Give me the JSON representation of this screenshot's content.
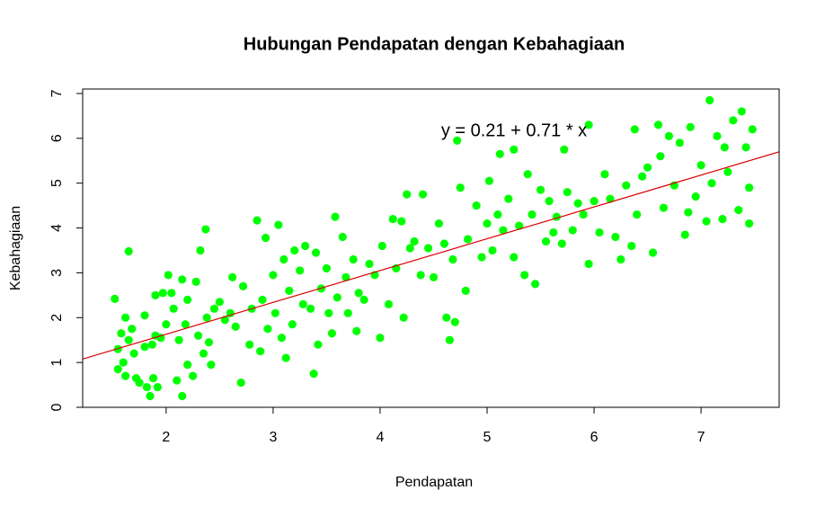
{
  "chart_data": {
    "type": "scatter",
    "title": "Hubungan Pendapatan dengan Kebahagiaan",
    "x_label": "Pendapatan",
    "y_label": "Kebahagiaan",
    "annotation": "y = 0.21 + 0.71 * x",
    "regression": {
      "intercept": 0.21,
      "slope": 0.71,
      "color": "#dd0000"
    },
    "color": "#00ff00",
    "xlim": [
      1.22,
      7.73
    ],
    "ylim": [
      0,
      7.1
    ],
    "xticks": [
      2,
      3,
      4,
      5,
      6,
      7
    ],
    "yticks": [
      0,
      1,
      2,
      3,
      4,
      5,
      6,
      7
    ],
    "x": [
      1.52,
      1.55,
      1.55,
      1.58,
      1.6,
      1.62,
      1.62,
      1.65,
      1.65,
      1.68,
      1.7,
      1.72,
      1.75,
      1.8,
      1.8,
      1.82,
      1.85,
      1.87,
      1.88,
      1.9,
      1.9,
      1.92,
      1.95,
      1.97,
      2.0,
      2.02,
      2.05,
      2.07,
      2.1,
      2.12,
      2.15,
      2.15,
      2.18,
      2.2,
      2.2,
      2.25,
      2.28,
      2.3,
      2.32,
      2.35,
      2.37,
      2.38,
      2.4,
      2.42,
      2.45,
      2.5,
      2.55,
      2.6,
      2.62,
      2.65,
      2.7,
      2.72,
      2.78,
      2.8,
      2.85,
      2.88,
      2.9,
      2.93,
      2.95,
      3.0,
      3.02,
      3.05,
      3.08,
      3.1,
      3.12,
      3.15,
      3.18,
      3.2,
      3.25,
      3.28,
      3.3,
      3.35,
      3.38,
      3.4,
      3.42,
      3.45,
      3.5,
      3.52,
      3.55,
      3.58,
      3.6,
      3.65,
      3.68,
      3.7,
      3.75,
      3.78,
      3.8,
      3.85,
      3.9,
      3.95,
      4.0,
      4.02,
      4.08,
      4.12,
      4.15,
      4.2,
      4.22,
      4.25,
      4.28,
      4.32,
      4.38,
      4.4,
      4.45,
      4.5,
      4.55,
      4.6,
      4.62,
      4.65,
      4.68,
      4.7,
      4.72,
      4.75,
      4.8,
      4.82,
      4.9,
      4.95,
      5.0,
      5.02,
      5.05,
      5.1,
      5.12,
      5.15,
      5.2,
      5.25,
      5.25,
      5.3,
      5.35,
      5.38,
      5.42,
      5.45,
      5.5,
      5.55,
      5.58,
      5.62,
      5.65,
      5.7,
      5.72,
      5.75,
      5.8,
      5.85,
      5.9,
      5.95,
      5.95,
      6.0,
      6.05,
      6.1,
      6.15,
      6.2,
      6.25,
      6.3,
      6.35,
      6.38,
      6.4,
      6.45,
      6.5,
      6.55,
      6.6,
      6.62,
      6.65,
      6.7,
      6.75,
      6.8,
      6.85,
      6.88,
      6.9,
      6.95,
      7.0,
      7.05,
      7.08,
      7.1,
      7.15,
      7.2,
      7.22,
      7.25,
      7.3,
      7.35,
      7.38,
      7.42,
      7.45,
      7.48,
      7.45
    ],
    "values": [
      2.42,
      1.3,
      0.85,
      1.65,
      1.0,
      2.0,
      0.7,
      3.48,
      1.5,
      1.75,
      1.2,
      0.65,
      0.55,
      2.05,
      1.35,
      0.45,
      0.25,
      1.4,
      0.65,
      2.5,
      1.6,
      0.45,
      1.55,
      2.55,
      1.85,
      2.95,
      2.55,
      2.2,
      0.6,
      1.5,
      2.85,
      0.25,
      1.85,
      0.95,
      2.4,
      0.7,
      2.8,
      1.6,
      3.5,
      1.2,
      3.97,
      2.0,
      1.45,
      0.95,
      2.2,
      2.35,
      1.95,
      2.1,
      2.9,
      1.8,
      0.55,
      2.7,
      1.4,
      2.2,
      4.17,
      1.25,
      2.4,
      3.78,
      1.75,
      2.95,
      2.1,
      4.07,
      1.55,
      3.3,
      1.1,
      2.6,
      1.85,
      3.5,
      3.05,
      2.3,
      3.6,
      2.2,
      0.75,
      3.45,
      1.4,
      2.65,
      3.1,
      2.1,
      1.65,
      4.25,
      2.45,
      3.8,
      2.9,
      2.1,
      3.3,
      1.7,
      2.55,
      2.4,
      3.2,
      2.95,
      1.55,
      3.6,
      2.3,
      4.2,
      3.1,
      4.15,
      2.0,
      4.75,
      3.55,
      3.7,
      2.95,
      4.75,
      3.55,
      2.9,
      4.1,
      3.65,
      2.0,
      1.5,
      3.3,
      1.9,
      5.95,
      4.9,
      2.6,
      3.75,
      4.5,
      3.35,
      4.1,
      5.05,
      3.5,
      4.3,
      5.65,
      3.95,
      4.65,
      3.35,
      5.75,
      4.05,
      2.95,
      5.2,
      4.3,
      2.75,
      4.85,
      3.7,
      4.6,
      3.9,
      4.25,
      3.65,
      5.75,
      4.8,
      3.95,
      4.55,
      4.3,
      3.2,
      6.3,
      4.6,
      3.9,
      5.2,
      4.65,
      3.8,
      3.3,
      4.95,
      3.6,
      6.2,
      4.3,
      5.15,
      5.35,
      3.45,
      6.3,
      5.6,
      4.45,
      6.05,
      4.95,
      5.9,
      3.85,
      4.35,
      6.25,
      4.7,
      5.4,
      4.15,
      6.85,
      5.0,
      6.05,
      4.2,
      5.8,
      5.25,
      6.4,
      4.4,
      6.6,
      5.8,
      4.1,
      6.2,
      4.9
    ]
  }
}
